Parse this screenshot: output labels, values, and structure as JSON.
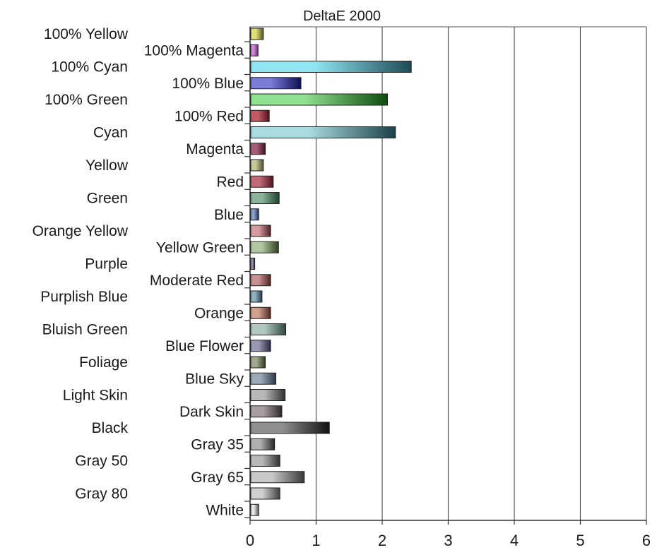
{
  "chart_data": {
    "type": "bar",
    "orientation": "horizontal",
    "title": "DeltaE 2000",
    "xlabel": "",
    "ylabel": "",
    "xlim": [
      0,
      6
    ],
    "xticks": [
      0,
      1,
      2,
      3,
      4,
      5,
      6
    ],
    "grid": true,
    "legend": "none",
    "categories": [
      "100% Yellow",
      "100% Magenta",
      "100% Cyan",
      "100% Blue",
      "100% Green",
      "100% Red",
      "Cyan",
      "Magenta",
      "Yellow",
      "Red",
      "Green",
      "Blue",
      "Orange Yellow",
      "Yellow Green",
      "Purple",
      "Moderate Red",
      "Purplish Blue",
      "Orange",
      "Bluish Green",
      "Blue Flower",
      "Foliage",
      "Blue Sky",
      "Light Skin",
      "Dark Skin",
      "Black",
      "Gray 35",
      "Gray 50",
      "Gray 65",
      "Gray 80",
      "White"
    ],
    "values": [
      0.19,
      0.11,
      2.43,
      0.76,
      2.07,
      0.28,
      2.19,
      0.22,
      0.19,
      0.34,
      0.43,
      0.12,
      0.3,
      0.42,
      0.06,
      0.3,
      0.17,
      0.3,
      0.53,
      0.3,
      0.22,
      0.38,
      0.52,
      0.47,
      1.19,
      0.36,
      0.44,
      0.81,
      0.44,
      0.12
    ],
    "bar_colors": [
      "#e0e07a",
      "#d28ad8",
      "#8fe6f2",
      "#7b7bd8",
      "#8fe08f",
      "#c05a66",
      "#a9dce0",
      "#a85c7a",
      "#c8c89a",
      "#c06a78",
      "#8ab49a",
      "#8aa0c8",
      "#d69ca0",
      "#b0c8a0",
      "#a090b0",
      "#c89090",
      "#90b0c0",
      "#d0a090",
      "#b0c8c0",
      "#9898b0",
      "#a0a890",
      "#9aaab8",
      "#b8b8b8",
      "#a8a0a0",
      "#909090",
      "#b0b0b0",
      "#b8b8b8",
      "#c8c8c8",
      "#d0d0d0",
      "#e8e8e8"
    ],
    "bar_dark_colors": [
      "#555520",
      "#6a2a70",
      "#1e4a55",
      "#0e0e55",
      "#0e4a0e",
      "#501018",
      "#1e4048",
      "#401020",
      "#505030",
      "#501020",
      "#1e4030",
      "#202a50",
      "#502028",
      "#304020",
      "#302040",
      "#502020",
      "#203848",
      "#502820",
      "#304840",
      "#282840",
      "#303820",
      "#28384a",
      "#303030",
      "#302828",
      "#101010",
      "#282828",
      "#303030",
      "#383838",
      "#404040",
      "#505050"
    ]
  }
}
